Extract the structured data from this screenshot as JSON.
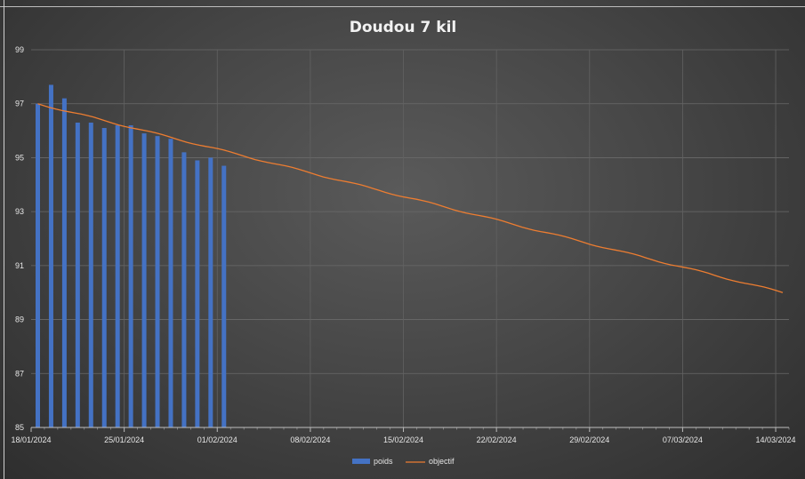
{
  "chart_data": {
    "type": "bar",
    "title": "Doudou 7 kil",
    "xlabel": "",
    "ylabel": "",
    "ylim": [
      85,
      99
    ],
    "y_ticks": [
      "85",
      "87",
      "89",
      "91",
      "93",
      "95",
      "97",
      "99"
    ],
    "xlim": [
      "2024-01-18",
      "2024-03-15"
    ],
    "x_tick_labels": [
      "18/01/2024",
      "25/01/2024",
      "01/02/2024",
      "08/02/2024",
      "15/02/2024",
      "22/02/2024",
      "29/02/2024",
      "07/03/2024",
      "14/03/2024"
    ],
    "grid": true,
    "legend_position": "bottom",
    "series": [
      {
        "name": "poids",
        "type": "bar",
        "color": "#4472c4",
        "x": [
          "2024-01-18",
          "2024-01-19",
          "2024-01-20",
          "2024-01-21",
          "2024-01-22",
          "2024-01-23",
          "2024-01-24",
          "2024-01-25",
          "2024-01-26",
          "2024-01-27",
          "2024-01-28",
          "2024-01-29",
          "2024-01-30",
          "2024-01-31",
          "2024-02-01"
        ],
        "values": [
          97.0,
          97.7,
          97.2,
          96.3,
          96.3,
          96.1,
          96.2,
          96.2,
          95.9,
          95.8,
          95.7,
          95.2,
          94.9,
          95.0,
          94.7
        ]
      },
      {
        "name": "objectif",
        "type": "line",
        "color": "#ed7d31",
        "x": [
          "2024-01-18",
          "2024-03-15"
        ],
        "values": [
          97.0,
          90.0
        ]
      }
    ]
  }
}
